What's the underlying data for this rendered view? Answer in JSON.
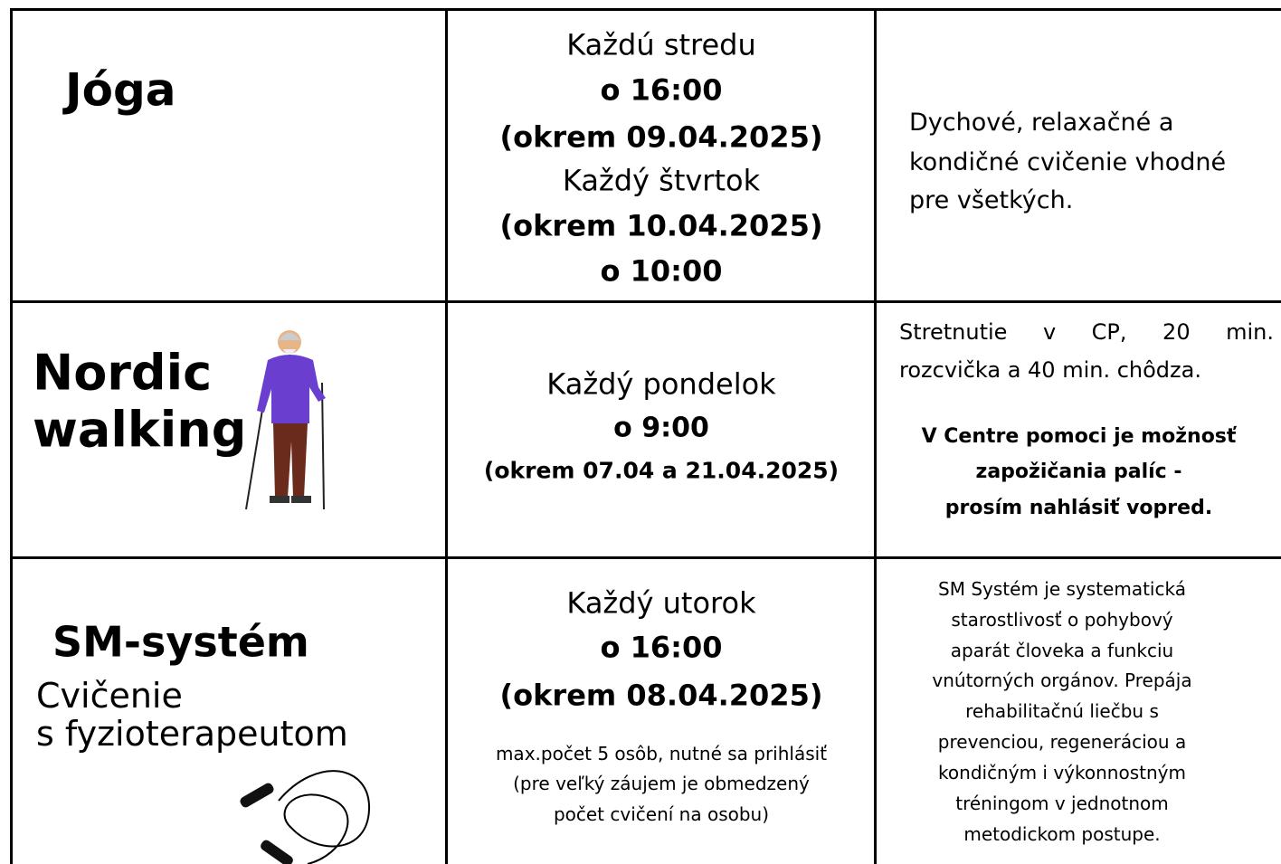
{
  "table": {
    "rows": [
      {
        "activity": [
          "Jóga"
        ],
        "schedule": [
          "Každú stredu",
          "o 16:00",
          "(okrem 09.04.2025)",
          "Každý štvrtok",
          "(okrem 10.04.2025)",
          "o 10:00"
        ],
        "description": [
          "Dychové, relaxačné a",
          "kondičné cvičenie vhodné",
          "pre všetkých."
        ]
      },
      {
        "activity": [
          "Nordic",
          "walking"
        ],
        "schedule": [
          "Každý pondelok",
          "o 9:00",
          "(okrem 07.04 a 21.04.2025)"
        ],
        "description": [
          "Stretnutie v CP, 20 min.",
          "rozcvička a 40 min. chôdza.",
          "V Centre pomoci je možnosť",
          "zapožičania palíc -",
          "prosím nahlásiť vopred."
        ]
      },
      {
        "activity": [
          "SM-systém",
          "Cvičenie",
          "s fyzioterapeutom"
        ],
        "schedule": [
          "Každý utorok",
          "o 16:00",
          "(okrem 08.04.2025)",
          "max.počet 5 osôb, nutné sa prihlásiť",
          "(pre veľký záujem je obmedzený",
          "počet cvičení na osobu)"
        ],
        "description": [
          "SM Systém je systematická",
          "starostlivosť o pohybový",
          "aparát človeka a funkciu",
          "vnútorných orgánov. Prepája",
          "rehabilitačnú liečbu s",
          "prevenciou, regeneráciou  a",
          "kondičným i výkonnostným",
          "tréningom v jednotnom",
          "metodickom postupe."
        ]
      }
    ]
  }
}
